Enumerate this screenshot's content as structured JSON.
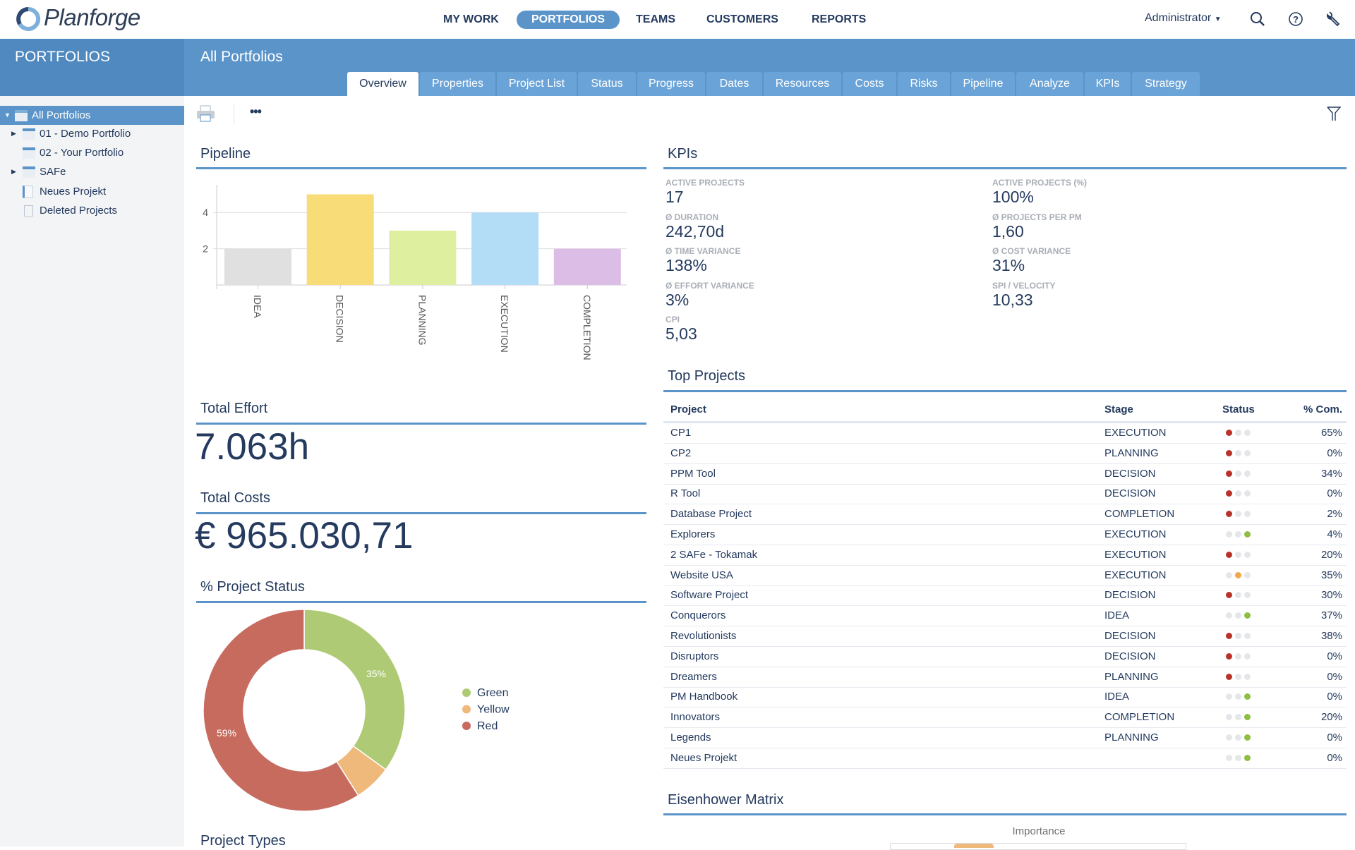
{
  "app": {
    "name": "Planforge"
  },
  "nav": [
    {
      "label": "MY WORK"
    },
    {
      "label": "PORTFOLIOS",
      "active": true
    },
    {
      "label": "TEAMS"
    },
    {
      "label": "CUSTOMERS"
    },
    {
      "label": "REPORTS"
    }
  ],
  "header": {
    "user": "Administrator",
    "icons": [
      "search-icon",
      "help-icon",
      "wrench-icon"
    ]
  },
  "sidebar": {
    "title": "PORTFOLIOS",
    "items": [
      {
        "label": "All Portfolios",
        "selected": true,
        "expanded": true
      },
      {
        "label": "01 - Demo Portfolio",
        "collapsed": true
      },
      {
        "label": "02 - Your Portfolio"
      },
      {
        "label": "SAFe",
        "collapsed": true
      },
      {
        "label": "Neues Projekt"
      },
      {
        "label": "Deleted Projects"
      }
    ]
  },
  "page": {
    "title": "All Portfolios"
  },
  "tabs": [
    "Overview",
    "Properties",
    "Project List",
    "Status",
    "Progress",
    "Dates",
    "Resources",
    "Costs",
    "Risks",
    "Pipeline",
    "Analyze",
    "KPIs",
    "Strategy"
  ],
  "active_tab": "Overview",
  "pipeline": {
    "title": "Pipeline"
  },
  "total_effort": {
    "title": "Total Effort",
    "value": "7.063h"
  },
  "total_costs": {
    "title": "Total Costs",
    "value": "€ 965.030,71"
  },
  "project_status": {
    "title": "% Project Status"
  },
  "project_types": {
    "title": "Project Types"
  },
  "kpis": {
    "title": "KPIs",
    "items": [
      {
        "label": "ACTIVE PROJECTS",
        "value": "17"
      },
      {
        "label": "ACTIVE PROJECTS (%)",
        "value": "100%"
      },
      {
        "label": "Ø DURATION",
        "value": "242,70d"
      },
      {
        "label": "Ø PROJECTS PER PM",
        "value": "1,60"
      },
      {
        "label": "Ø TIME VARIANCE",
        "value": "138%"
      },
      {
        "label": "Ø COST VARIANCE",
        "value": "31%"
      },
      {
        "label": "Ø EFFORT VARIANCE",
        "value": "3%"
      },
      {
        "label": "SPI / VELOCITY",
        "value": "10,33"
      },
      {
        "label": "CPI",
        "value": "5,03"
      }
    ]
  },
  "top_projects": {
    "title": "Top Projects",
    "columns": [
      "Project",
      "Stage",
      "Status",
      "% Com."
    ],
    "rows": [
      [
        "CP1",
        "EXECUTION",
        "red",
        "65%"
      ],
      [
        "CP2",
        "PLANNING",
        "red",
        "0%"
      ],
      [
        "PPM Tool",
        "DECISION",
        "red",
        "34%"
      ],
      [
        "R Tool",
        "DECISION",
        "red",
        "0%"
      ],
      [
        "Database Project",
        "COMPLETION",
        "red",
        "2%"
      ],
      [
        "Explorers",
        "EXECUTION",
        "green",
        "4%"
      ],
      [
        "2 SAFe - Tokamak",
        "EXECUTION",
        "red",
        "20%"
      ],
      [
        "Website USA",
        "EXECUTION",
        "yellow",
        "35%"
      ],
      [
        "Software Project",
        "DECISION",
        "red",
        "30%"
      ],
      [
        "Conquerors",
        "IDEA",
        "green",
        "37%"
      ],
      [
        "Revolutionists",
        "DECISION",
        "red",
        "38%"
      ],
      [
        "Disruptors",
        "DECISION",
        "red",
        "0%"
      ],
      [
        "Dreamers",
        "PLANNING",
        "red",
        "0%"
      ],
      [
        "PM Handbook",
        "IDEA",
        "green",
        "0%"
      ],
      [
        "Innovators",
        "COMPLETION",
        "green",
        "20%"
      ],
      [
        "Legends",
        "PLANNING",
        "green",
        "0%"
      ],
      [
        "Neues Projekt",
        "",
        "green",
        "0%"
      ]
    ]
  },
  "eisenhower": {
    "title": "Eisenhower Matrix",
    "axis_label": "Importance"
  },
  "colors": {
    "accent": "#5b94c9",
    "status_red": "#b83227",
    "status_yellow": "#f0a848",
    "status_green": "#8cbf3f"
  },
  "chart_data": [
    {
      "type": "bar",
      "categories": [
        "IDEA",
        "DECISION",
        "PLANNING",
        "EXECUTION",
        "COMPLETION"
      ],
      "values": [
        2,
        5,
        3,
        4,
        2
      ],
      "colors": [
        "#e0e0e0",
        "#f8dc78",
        "#def0a0",
        "#b3dcf6",
        "#dcbde6"
      ],
      "yticks": [
        2,
        4
      ],
      "ylim": [
        0,
        5.5
      ],
      "grid": true
    },
    {
      "type": "pie",
      "donut": true,
      "categories": [
        "Green",
        "Yellow",
        "Red"
      ],
      "values": [
        35,
        6,
        59
      ],
      "labels": [
        "35%",
        "",
        "59%"
      ],
      "colors": [
        "#aeca75",
        "#f0b97c",
        "#c76b5f"
      ],
      "legend": "right"
    }
  ]
}
